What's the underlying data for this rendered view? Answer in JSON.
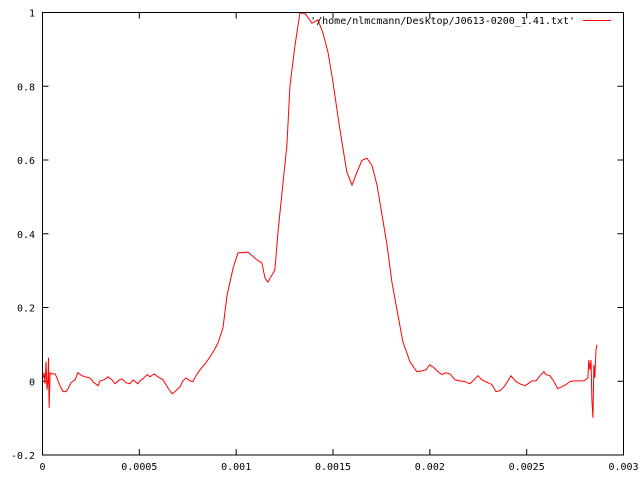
{
  "chart_data": {
    "type": "line",
    "title": "",
    "xlabel": "",
    "ylabel": "",
    "xlim": [
      0,
      0.003
    ],
    "ylim": [
      -0.2,
      1
    ],
    "grid": false,
    "legend_position": "top-right",
    "x_ticks": [
      "0",
      "0.0005",
      "0.001",
      "0.0015",
      "0.002",
      "0.0025",
      "0.003"
    ],
    "y_ticks": [
      "-0.2",
      "0",
      "0.2",
      "0.4",
      "0.6",
      "0.8",
      "1"
    ],
    "series": [
      {
        "name": "'/home/nlmcmann/Desktop/J0613-0200_1.41.txt'",
        "color": "#ff0000",
        "x": [
          3e-06,
          8e-06,
          1.3e-05,
          1.8e-05,
          2.3e-05,
          2.8e-05,
          3.1e-05,
          3.4e-05,
          3.9e-05,
          4.9e-05,
          6.5e-05,
          7.5e-05,
          9e-05,
          0.000106,
          0.000121,
          0.000132,
          0.000147,
          0.000168,
          0.000183,
          0.000204,
          0.000219,
          0.000245,
          0.000266,
          0.000287,
          0.000297,
          0.000318,
          0.000338,
          0.000359,
          0.000374,
          0.00039,
          0.00041,
          0.000431,
          0.000452,
          0.000467,
          0.000493,
          0.000503,
          0.000519,
          0.00054,
          0.000555,
          0.000576,
          0.000596,
          0.000622,
          0.000648,
          0.000669,
          0.000684,
          0.00071,
          0.000725,
          0.000741,
          0.000762,
          0.000777,
          0.000792,
          0.000813,
          0.000839,
          0.000865,
          0.000885,
          0.000906,
          0.000932,
          0.000953,
          0.000984,
          0.001009,
          0.001061,
          0.001108,
          0.001133,
          0.001149,
          0.001164,
          0.0012,
          0.001216,
          0.001236,
          0.001262,
          0.001278,
          0.001304,
          0.001329,
          0.001355,
          0.001391,
          0.001422,
          0.001448,
          0.001474,
          0.0015,
          0.001525,
          0.001551,
          0.001572,
          0.001598,
          0.001624,
          0.001649,
          0.001675,
          0.001701,
          0.001727,
          0.001753,
          0.001779,
          0.001804,
          0.001835,
          0.001861,
          0.001897,
          0.001933,
          0.001959,
          0.00198,
          0.002,
          0.002021,
          0.002042,
          0.002063,
          0.002083,
          0.002104,
          0.00213,
          0.002156,
          0.002181,
          0.002207,
          0.002233,
          0.002248,
          0.002269,
          0.0023,
          0.002321,
          0.002341,
          0.002362,
          0.002383,
          0.002403,
          0.002419,
          0.002429,
          0.002445,
          0.002465,
          0.002491,
          0.002507,
          0.002527,
          0.002548,
          0.002569,
          0.002589,
          0.002599,
          0.00262,
          0.002641,
          0.002661,
          0.002682,
          0.002703,
          0.002723,
          0.002744,
          0.002765,
          0.002796,
          0.002816,
          0.002821,
          0.002827,
          0.002832,
          0.002837,
          0.002842,
          0.002847,
          0.002852,
          0.002858,
          0.002863
        ],
        "y": [
          0.009,
          0.023,
          -0.007,
          0.053,
          -0.023,
          -0.001,
          0.064,
          -0.072,
          0.023,
          0.02,
          0.02,
          0.009,
          -0.012,
          -0.028,
          -0.028,
          -0.02,
          -0.004,
          0.004,
          0.023,
          0.015,
          0.012,
          0.009,
          -0.004,
          -0.012,
          0.001,
          0.004,
          0.012,
          0.004,
          -0.007,
          0.001,
          0.007,
          -0.004,
          -0.007,
          0.004,
          -0.007,
          0.001,
          0.007,
          0.018,
          0.012,
          0.02,
          0.012,
          0.004,
          -0.018,
          -0.034,
          -0.028,
          -0.015,
          0.001,
          0.009,
          0.001,
          -0.001,
          0.015,
          0.031,
          0.047,
          0.066,
          0.083,
          0.104,
          0.145,
          0.234,
          0.307,
          0.348,
          0.35,
          0.329,
          0.321,
          0.28,
          0.269,
          0.302,
          0.405,
          0.509,
          0.64,
          0.802,
          0.911,
          0.998,
          0.998,
          0.971,
          0.98,
          0.945,
          0.892,
          0.811,
          0.721,
          0.632,
          0.567,
          0.532,
          0.567,
          0.599,
          0.605,
          0.586,
          0.532,
          0.451,
          0.37,
          0.269,
          0.18,
          0.107,
          0.053,
          0.026,
          0.028,
          0.031,
          0.045,
          0.037,
          0.026,
          0.018,
          0.023,
          0.02,
          0.004,
          0.001,
          -0.001,
          -0.007,
          0.007,
          0.015,
          0.004,
          -0.004,
          -0.009,
          -0.028,
          -0.026,
          -0.015,
          0.001,
          0.015,
          0.009,
          -0.001,
          -0.007,
          -0.012,
          -0.007,
          0.001,
          0.001,
          0.015,
          0.026,
          0.018,
          0.015,
          -0.001,
          -0.02,
          -0.015,
          -0.009,
          -0.001,
          0.001,
          0.001,
          0.001,
          0.009,
          0.058,
          0.031,
          0.058,
          -0.05,
          -0.099,
          0.045,
          0.009,
          0.085,
          0.099
        ]
      }
    ]
  }
}
